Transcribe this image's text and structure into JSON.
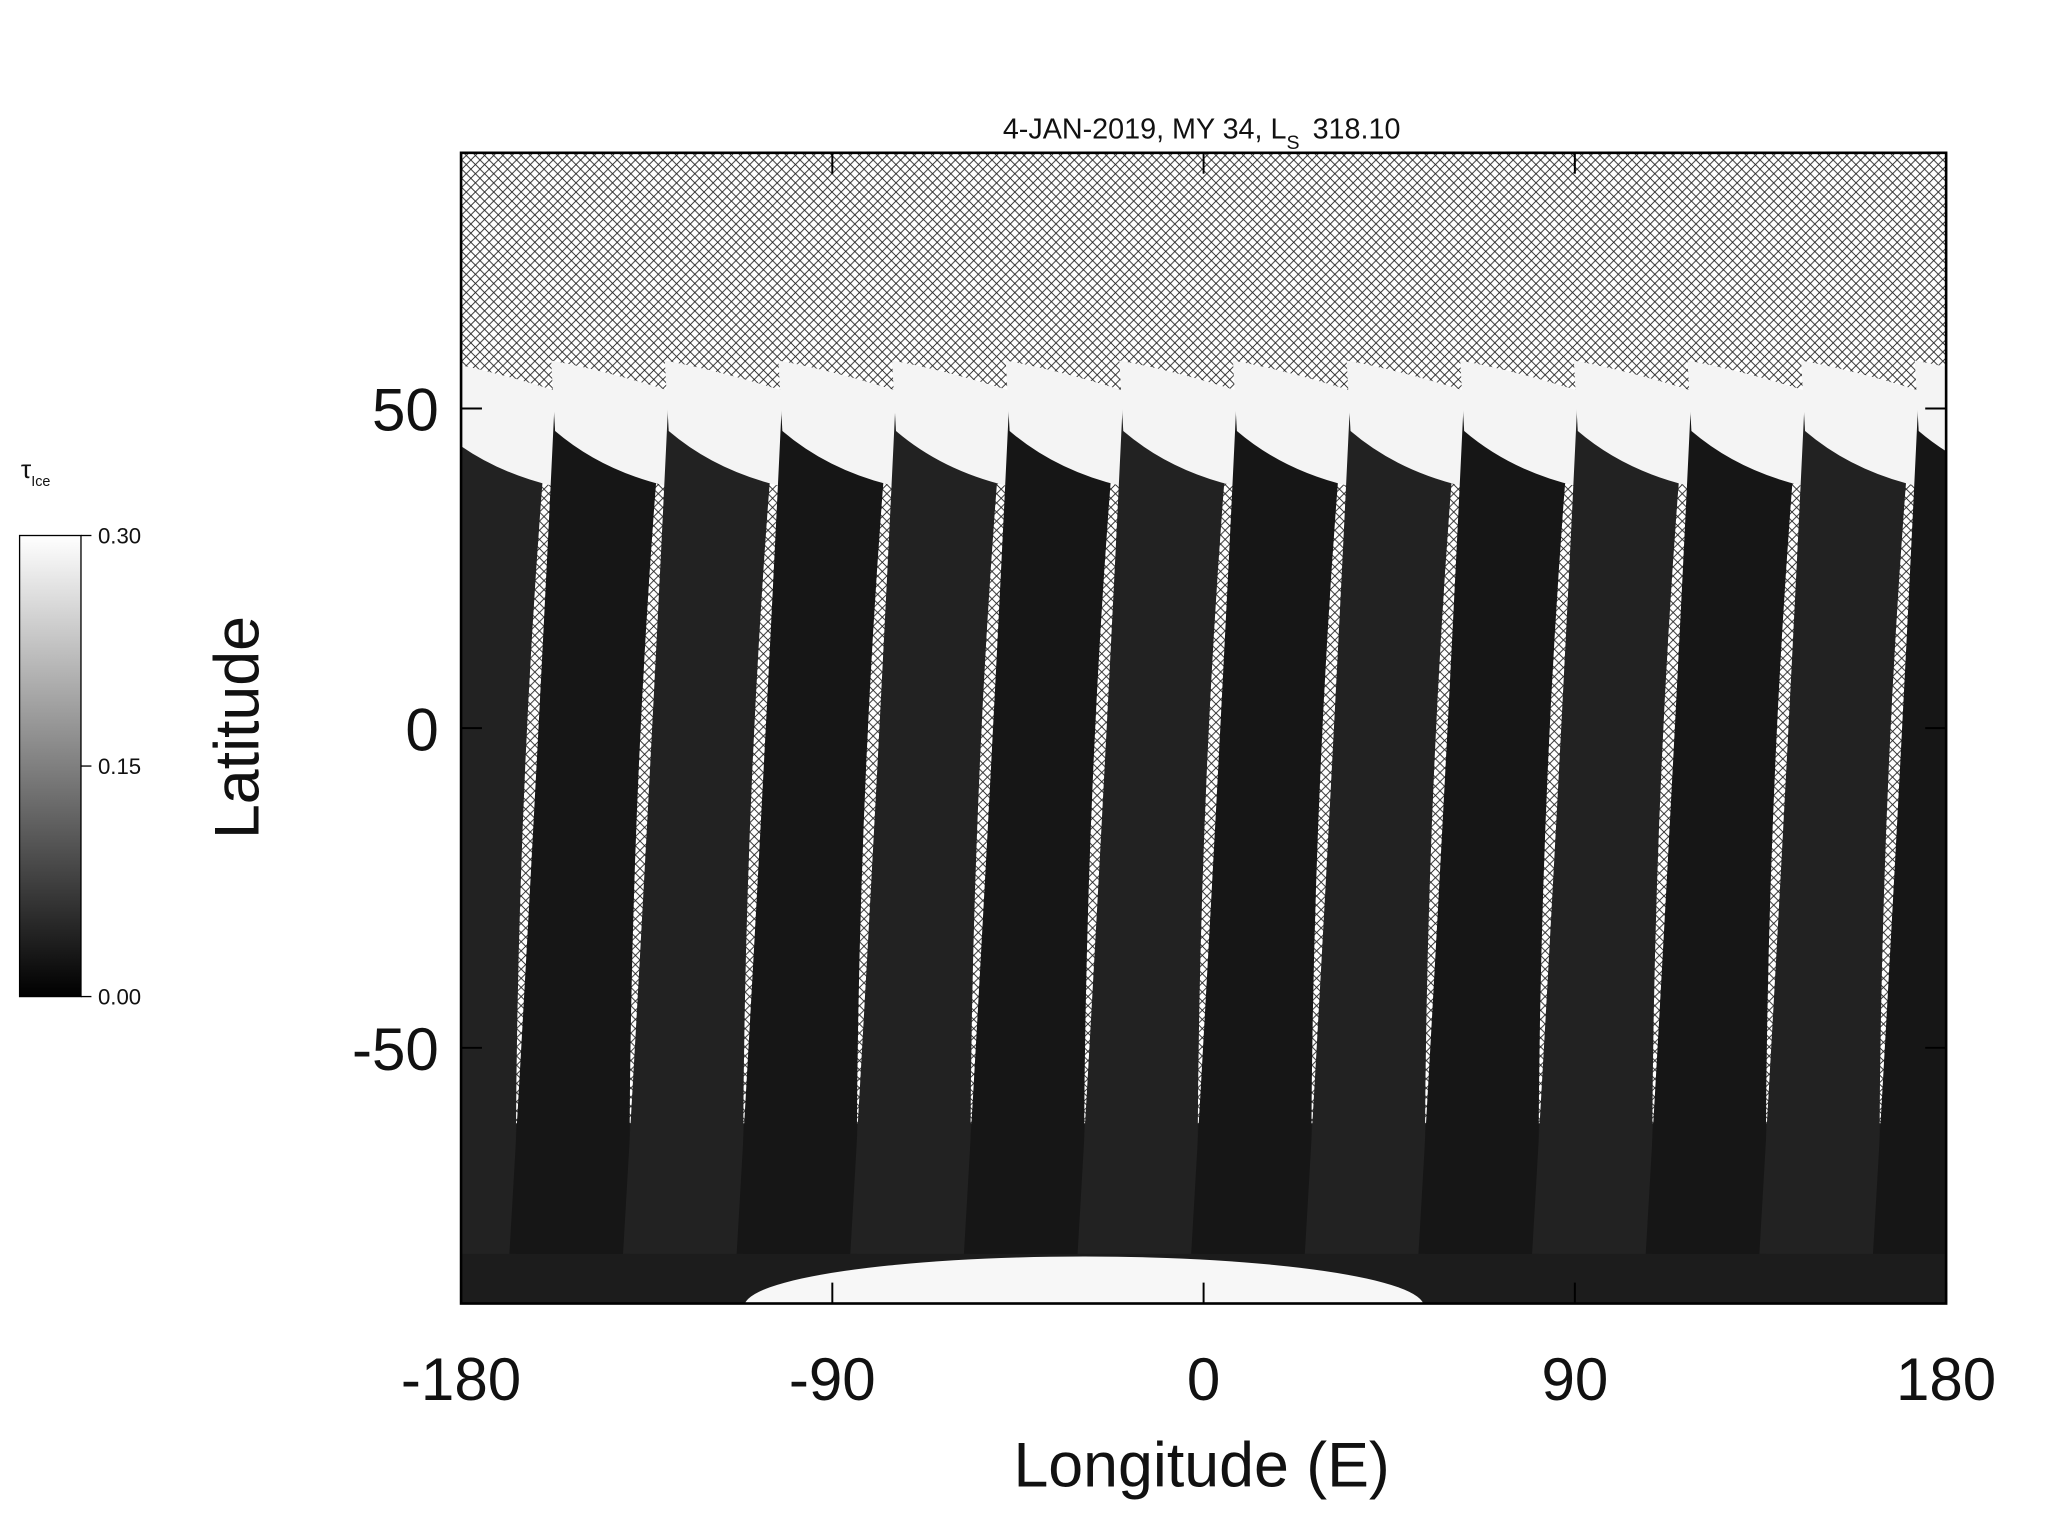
{
  "chart_data": {
    "type": "map",
    "title": {
      "main": "4-JAN-2019, MY 34,  L",
      "subscript": "S",
      "value": "318.10"
    },
    "x_label": "Longitude (E)",
    "y_label": "Latitude",
    "xlim": [
      -180,
      180
    ],
    "ylim": [
      -90,
      90
    ],
    "xticks": [
      -180,
      -90,
      0,
      90,
      180
    ],
    "yticks": [
      -50,
      0,
      50
    ],
    "colorbar": {
      "symbol": "τ",
      "subscript": "Ice",
      "lim": [
        0,
        0.3
      ],
      "ticks": [
        {
          "value": 0,
          "label": "0.00"
        },
        {
          "value": 0.15,
          "label": "0.15"
        },
        {
          "value": 0.3,
          "label": "0.30"
        }
      ]
    }
  }
}
